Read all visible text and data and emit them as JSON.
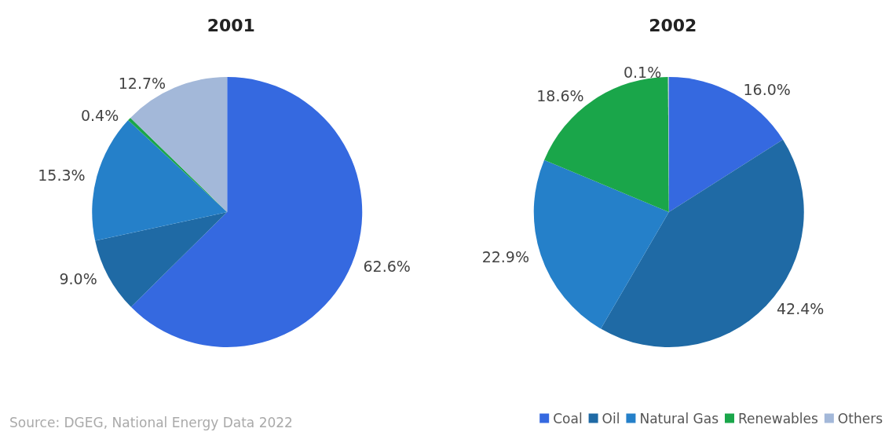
{
  "chart_data": {
    "type": "pie",
    "categories": [
      "Coal",
      "Oil",
      "Natural Gas",
      "Renewables",
      "Others"
    ],
    "colors": [
      "#3569e0",
      "#1f6aa5",
      "#2580c9",
      "#1aa64a",
      "#a3b8d9"
    ],
    "series": [
      {
        "name": "2001",
        "values": [
          62.6,
          9.0,
          15.3,
          0.4,
          12.7
        ],
        "value_labels": [
          "62.6%",
          "9.0%",
          "15.3%",
          "0.4%",
          "12.7%"
        ]
      },
      {
        "name": "2002",
        "values": [
          16.0,
          42.4,
          22.9,
          18.6,
          0.1
        ],
        "value_labels": [
          "16.0%",
          "42.4%",
          "22.9%",
          "18.6%",
          "0.1%"
        ]
      }
    ],
    "annotations": [
      "Source: DGEG, National Energy Data 2022"
    ],
    "legend": "bottom right"
  }
}
